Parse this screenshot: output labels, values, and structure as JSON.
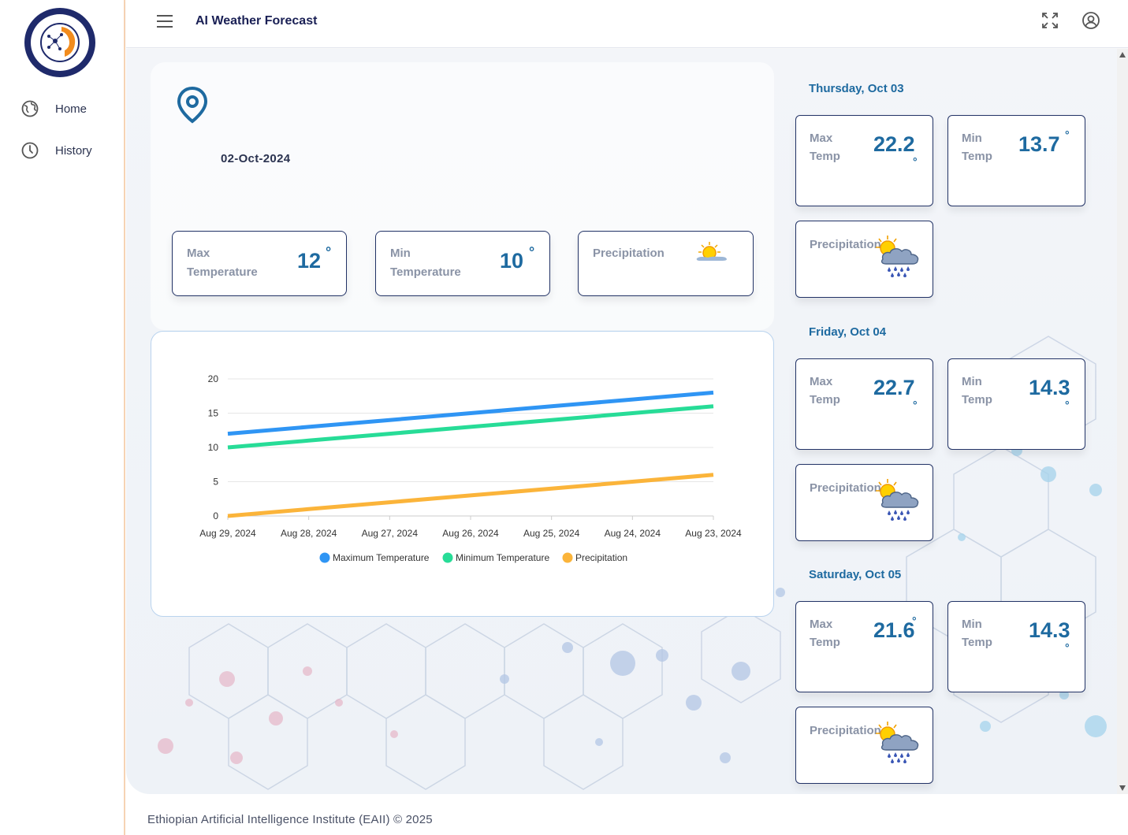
{
  "app": {
    "title": "AI Weather Forecast"
  },
  "sidebar": {
    "items": [
      {
        "label": "Home",
        "icon": "globe-icon"
      },
      {
        "label": "History",
        "icon": "clock-icon"
      }
    ]
  },
  "today": {
    "date": "02-Oct-2024",
    "max": {
      "label1": "Max",
      "label2": "Temperature",
      "value": "12",
      "unit": "°"
    },
    "min": {
      "label1": "Min",
      "label2": "Temperature",
      "value": "10",
      "unit": "°"
    },
    "precip": {
      "label": "Precipitation",
      "icon": "sunny-cloud-icon"
    }
  },
  "forecast": [
    {
      "day": "Thursday, Oct 03",
      "max_label1": "Max",
      "max_label2": "Temp",
      "max": "22.2",
      "min_label1": "Min",
      "min_label2": "Temp",
      "min": "13.7",
      "precip_label": "Precipitation",
      "precip_icon": "sun-rain-cloud-icon",
      "deg": "°"
    },
    {
      "day": "Friday, Oct 04",
      "max_label1": "Max",
      "max_label2": "Temp",
      "max": "22.7",
      "min_label1": "Min",
      "min_label2": "Temp",
      "min": "14.3",
      "precip_label": "Precipitation",
      "precip_icon": "sun-rain-cloud-icon",
      "deg": "°"
    },
    {
      "day": "Saturday, Oct 05",
      "max_label1": "Max",
      "max_label2": "Temp",
      "max": "21.6",
      "min_label1": "Min",
      "min_label2": "Temp",
      "min": "14.3",
      "precip_label": "Precipitation",
      "precip_icon": "sun-rain-cloud-icon",
      "deg": "°"
    }
  ],
  "chart_data": {
    "type": "line",
    "categories": [
      "Aug 29, 2024",
      "Aug 28, 2024",
      "Aug 27, 2024",
      "Aug 26, 2024",
      "Aug 25, 2024",
      "Aug 24, 2024",
      "Aug 23, 2024"
    ],
    "series": [
      {
        "name": "Maximum Temperature",
        "color": "#2f95f4",
        "values": [
          12,
          13,
          14,
          15,
          16,
          17,
          18
        ]
      },
      {
        "name": "Minimum Temperature",
        "color": "#27dc97",
        "values": [
          10,
          11,
          12,
          13,
          14,
          15,
          16
        ]
      },
      {
        "name": "Precipitation",
        "color": "#fbb43a",
        "values": [
          0,
          1,
          2,
          3,
          4,
          5,
          6
        ]
      }
    ],
    "yticks": [
      "0",
      "5",
      "10",
      "15",
      "20"
    ],
    "ylim": [
      0,
      20
    ],
    "grid": true,
    "legend": "bottom"
  },
  "footer": {
    "text": "Ethiopian Artificial Intelligence Institute (EAII) © 2025"
  }
}
